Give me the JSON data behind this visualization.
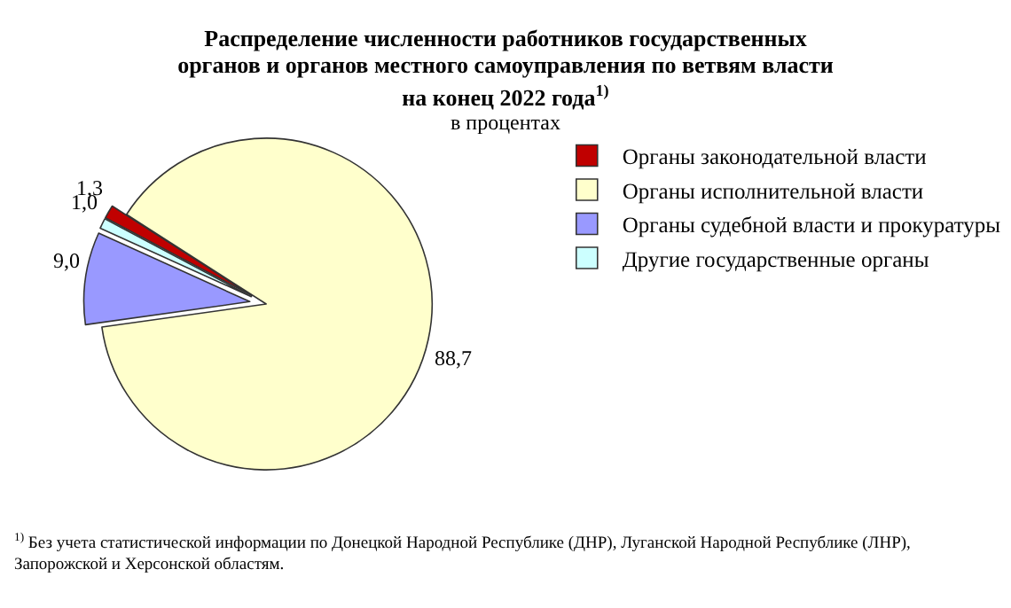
{
  "chart_data": {
    "type": "pie",
    "title": "Распределение численности работников государственных органов и органов местного самоуправления по ветвям власти на конец 2022 года$^{1)}$",
    "subtitle": "в процентах",
    "categories": [
      "Органы законодательной власти",
      "Органы исполнительной власти",
      "Органы судебной власти и прокуратуры",
      "Другие государственные органы"
    ],
    "values": [
      1.3,
      88.7,
      9.0,
      1.0
    ],
    "value_labels": [
      "1,3",
      "88,7",
      "9,0",
      "1,0"
    ],
    "colors": [
      "#c00000",
      "#ffffcc",
      "#9999ff",
      "#ccffff"
    ],
    "legend": "right",
    "annotations": [
      "$^{1)}$ Без учета статистической информации по Донецкой Народной Республике (ДНР), Луганской Народной Республике (ЛНР), Запорожской и Херсонской областям."
    ]
  }
}
